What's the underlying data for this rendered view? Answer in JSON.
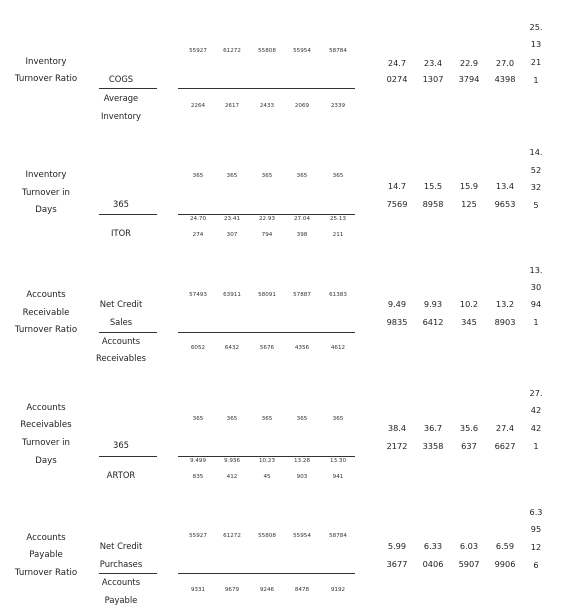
{
  "rows": [
    {
      "label": [
        "Inventory",
        "Turnover Ratio"
      ],
      "numerator": [
        "COGS"
      ],
      "denominator": [
        "Average",
        "Inventory"
      ],
      "num_values": [
        [
          "55927"
        ],
        [
          "61272"
        ],
        [
          "55808"
        ],
        [
          "55954"
        ],
        [
          "58784"
        ]
      ],
      "den_values": [
        [
          "2264"
        ],
        [
          "2617"
        ],
        [
          "2433"
        ],
        [
          "2069"
        ],
        [
          "2339"
        ]
      ],
      "results": [
        [
          "24.7",
          "0274"
        ],
        [
          "23.4",
          "1307"
        ],
        [
          "22.9",
          "3794"
        ],
        [
          "27.0",
          "4398"
        ],
        [
          "25.",
          "13",
          "21",
          "1"
        ]
      ]
    },
    {
      "label": [
        "Inventory",
        "Turnover in",
        "Days"
      ],
      "numerator": [
        "365"
      ],
      "denominator": [
        "ITOR"
      ],
      "num_values": [
        [
          "365"
        ],
        [
          "365"
        ],
        [
          "365"
        ],
        [
          "365"
        ],
        [
          "365"
        ]
      ],
      "den_values": [
        [
          "24.70",
          "274"
        ],
        [
          "23.41",
          "307"
        ],
        [
          "22.93",
          "794"
        ],
        [
          "27.04",
          "398"
        ],
        [
          "25.13",
          "211"
        ]
      ],
      "results": [
        [
          "14.7",
          "7569"
        ],
        [
          "15.5",
          "8958"
        ],
        [
          "15.9",
          "125"
        ],
        [
          "13.4",
          "9653"
        ],
        [
          "14.",
          "52",
          "32",
          "5"
        ]
      ]
    },
    {
      "label": [
        "Accounts",
        "Receivable",
        "Turnover Ratio"
      ],
      "numerator": [
        "Net Credit",
        "Sales"
      ],
      "denominator": [
        "Accounts",
        "Receivables"
      ],
      "num_values": [
        [
          "57493"
        ],
        [
          "63911"
        ],
        [
          "58091"
        ],
        [
          "57887"
        ],
        [
          "61383"
        ]
      ],
      "den_values": [
        [
          "6052"
        ],
        [
          "6432"
        ],
        [
          "5676"
        ],
        [
          "4356"
        ],
        [
          "4612"
        ]
      ],
      "results": [
        [
          "9.49",
          "9835"
        ],
        [
          "9.93",
          "6412"
        ],
        [
          "10.2",
          "345"
        ],
        [
          "13.2",
          "8903"
        ],
        [
          "13.",
          "30",
          "94",
          "1"
        ]
      ]
    },
    {
      "label": [
        "Accounts",
        "Receivables",
        "Turnover in",
        "Days"
      ],
      "numerator": [
        "365"
      ],
      "denominator": [
        "ARTOR"
      ],
      "num_values": [
        [
          "365"
        ],
        [
          "365"
        ],
        [
          "365"
        ],
        [
          "365"
        ],
        [
          "365"
        ]
      ],
      "den_values": [
        [
          "9.499",
          "835"
        ],
        [
          "9.936",
          "412"
        ],
        [
          "10.23",
          "45"
        ],
        [
          "13.28",
          "903"
        ],
        [
          "13.30",
          "941"
        ]
      ],
      "results": [
        [
          "38.4",
          "2172"
        ],
        [
          "36.7",
          "3358"
        ],
        [
          "35.6",
          "637"
        ],
        [
          "27.4",
          "6627"
        ],
        [
          "27.",
          "42",
          "42",
          "1"
        ]
      ]
    },
    {
      "label": [
        "Accounts",
        "Payable",
        "Turnover Ratio"
      ],
      "numerator": [
        "Net Credit",
        "Purchases"
      ],
      "denominator": [
        "Accounts",
        "Payable"
      ],
      "num_values": [
        [
          "55927"
        ],
        [
          "61272"
        ],
        [
          "55808"
        ],
        [
          "55954"
        ],
        [
          "58784"
        ]
      ],
      "den_values": [
        [
          "9331"
        ],
        [
          "9679"
        ],
        [
          "9246"
        ],
        [
          "8478"
        ],
        [
          "9192"
        ]
      ],
      "results": [
        [
          "5.99",
          "3677"
        ],
        [
          "6.33",
          "0406"
        ],
        [
          "6.03",
          "5907"
        ],
        [
          "6.59",
          "9906"
        ],
        [
          "6.3",
          "95",
          "12",
          "6"
        ]
      ]
    }
  ]
}
